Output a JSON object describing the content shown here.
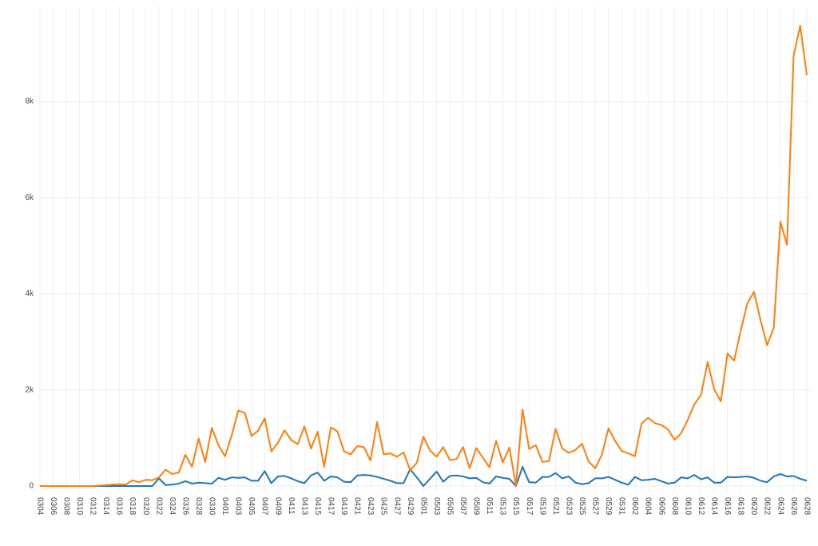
{
  "chart_data": {
    "type": "line",
    "categories": [
      "0304",
      null,
      "0306",
      null,
      "0308",
      null,
      "0310",
      null,
      "0312",
      null,
      "0314",
      null,
      "0316",
      null,
      "0318",
      null,
      "0320",
      null,
      "0322",
      null,
      "0324",
      null,
      "0326",
      null,
      "0328",
      null,
      "0330",
      null,
      "0401",
      null,
      "0403",
      null,
      "0405",
      null,
      "0407",
      null,
      "0409",
      null,
      "0411",
      null,
      "0413",
      null,
      "0415",
      null,
      "0417",
      null,
      "0419",
      null,
      "0421",
      null,
      "0423",
      null,
      "0425",
      null,
      "0427",
      null,
      "0429",
      null,
      "0501",
      null,
      "0503",
      null,
      "0505",
      null,
      "0507",
      null,
      "0509",
      null,
      "0511",
      null,
      "0513",
      null,
      "0515",
      null,
      "0517",
      null,
      "0519",
      null,
      "0521",
      null,
      "0523",
      null,
      "0525",
      null,
      "0527",
      null,
      "0529",
      null,
      "0531",
      null,
      "0602",
      null,
      "0604",
      null,
      "0606",
      null,
      "0608",
      null,
      "0610",
      null,
      "0612",
      null,
      "0614",
      null,
      "0616",
      null,
      "0618",
      null,
      "0620",
      null,
      "0622",
      null,
      "0624",
      null,
      "0626",
      null,
      "0628"
    ],
    "series": [
      {
        "color": "#1f77b4",
        "values": [
          0,
          0,
          0,
          0,
          0,
          0,
          0,
          0,
          0,
          0,
          0,
          0,
          0,
          0,
          0,
          0,
          0,
          0,
          160,
          20,
          30,
          50,
          100,
          50,
          70,
          60,
          50,
          170,
          130,
          180,
          170,
          180,
          110,
          110,
          310,
          60,
          200,
          210,
          160,
          100,
          60,
          220,
          280,
          110,
          200,
          180,
          90,
          80,
          220,
          230,
          220,
          190,
          150,
          110,
          60,
          60,
          350,
          180,
          0,
          150,
          300,
          90,
          210,
          220,
          200,
          160,
          170,
          80,
          50,
          200,
          170,
          150,
          0,
          400,
          80,
          70,
          190,
          190,
          270,
          160,
          200,
          70,
          40,
          60,
          160,
          160,
          190,
          130,
          70,
          30,
          190,
          120,
          130,
          150,
          100,
          50,
          70,
          180,
          160,
          230,
          140,
          180,
          70,
          70,
          190,
          180,
          190,
          200,
          170,
          110,
          80,
          200,
          250,
          200,
          210,
          150,
          110
        ]
      },
      {
        "color": "#ff7f0e",
        "values": [
          0,
          0,
          0,
          0,
          0,
          0,
          0,
          0,
          0,
          10,
          20,
          30,
          40,
          30,
          120,
          80,
          130,
          120,
          180,
          340,
          250,
          280,
          650,
          400,
          990,
          500,
          1210,
          850,
          620,
          1050,
          1570,
          1520,
          1040,
          1150,
          1410,
          720,
          900,
          1160,
          960,
          870,
          1240,
          780,
          1130,
          400,
          1220,
          1140,
          720,
          660,
          830,
          810,
          530,
          1330,
          660,
          680,
          610,
          700,
          330,
          480,
          1030,
          740,
          610,
          810,
          540,
          560,
          810,
          370,
          790,
          590,
          390,
          940,
          490,
          800,
          10,
          1590,
          770,
          850,
          500,
          520,
          1190,
          780,
          690,
          750,
          880,
          510,
          370,
          650,
          1200,
          940,
          730,
          680,
          620,
          1300,
          1420,
          1310,
          1270,
          1180,
          960,
          1100,
          1380,
          1700,
          1900,
          2580,
          2010,
          1760,
          2760,
          2610,
          3230,
          3800,
          4040,
          3450,
          2930,
          3290,
          5500,
          5020,
          8950,
          9580,
          8550
        ]
      }
    ],
    "ylim": [
      -100,
      9980
    ],
    "yticks": [
      0,
      {
        "value": 2000,
        "label": "2k"
      },
      {
        "value": 4000,
        "label": "4k"
      },
      {
        "value": 6000,
        "label": "6k"
      },
      {
        "value": 8000,
        "label": "8k"
      }
    ],
    "grid": true
  }
}
